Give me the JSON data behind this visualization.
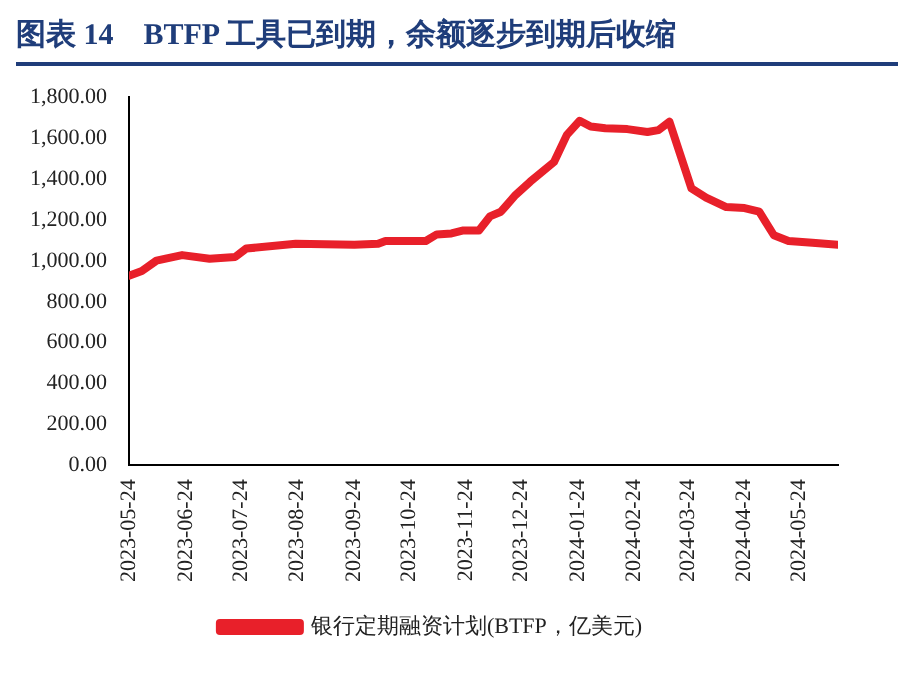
{
  "chart_data": {
    "type": "line",
    "title": "图表 14　BTFP 工具已到期，余额逐步到期后收缩",
    "x": [
      "2023-05-24",
      "2023-05-31",
      "2023-06-08",
      "2023-06-22",
      "2023-07-07",
      "2023-07-21",
      "2023-07-27",
      "2023-08-23",
      "2023-09-24",
      "2023-10-07",
      "2023-10-11",
      "2023-11-02",
      "2023-11-08",
      "2023-11-16",
      "2023-11-22",
      "2023-12-01",
      "2023-12-07",
      "2023-12-13",
      "2023-12-21",
      "2023-12-29",
      "2024-01-11",
      "2024-01-18",
      "2024-01-25",
      "2024-01-31",
      "2024-02-08",
      "2024-02-20",
      "2024-03-02",
      "2024-03-08",
      "2024-03-14",
      "2024-03-26",
      "2024-04-03",
      "2024-04-14",
      "2024-04-24",
      "2024-05-02",
      "2024-05-10",
      "2024-05-18",
      "2024-05-31",
      "2024-06-14"
    ],
    "series": [
      {
        "name": "银行定期融资计划(BTFP，亿美元)",
        "color": "#e8202a",
        "values": [
          927,
          950,
          1001,
          1028,
          1010,
          1019,
          1060,
          1083,
          1079,
          1083,
          1097,
          1097,
          1129,
          1134,
          1148,
          1148,
          1217,
          1240,
          1322,
          1387,
          1483,
          1616,
          1685,
          1657,
          1648,
          1644,
          1630,
          1639,
          1680,
          1354,
          1309,
          1263,
          1258,
          1240,
          1125,
          1097,
          1088,
          1079
        ]
      }
    ],
    "xlim": [
      "2023-05-24",
      "2024-06-14"
    ],
    "xticks": [
      "2023-05-24",
      "2023-06-24",
      "2023-07-24",
      "2023-08-24",
      "2023-09-24",
      "2023-10-24",
      "2023-11-24",
      "2023-12-24",
      "2024-01-24",
      "2024-02-24",
      "2024-03-24",
      "2024-04-24",
      "2024-05-24"
    ],
    "ylim": [
      0,
      1800
    ],
    "yticks": [
      {
        "value": 0,
        "label": "0.00"
      },
      {
        "value": 200,
        "label": "200.00"
      },
      {
        "value": 400,
        "label": "400.00"
      },
      {
        "value": 600,
        "label": "600.00"
      },
      {
        "value": 800,
        "label": "800.00"
      },
      {
        "value": 1000,
        "label": "1,000.00"
      },
      {
        "value": 1200,
        "label": "1,200.00"
      },
      {
        "value": 1400,
        "label": "1,400.00"
      },
      {
        "value": 1600,
        "label": "1,600.00"
      },
      {
        "value": 1800,
        "label": "1,800.00"
      }
    ],
    "grid": false,
    "legend": "bottom",
    "marker": "none",
    "line_style": "solid"
  }
}
